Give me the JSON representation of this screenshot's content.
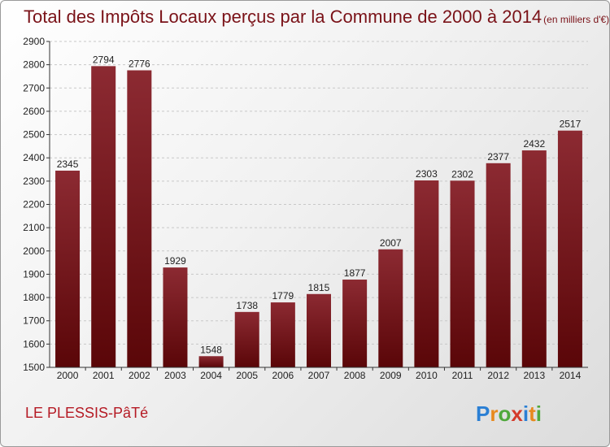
{
  "chart_data": {
    "type": "bar",
    "title": "Total des Impôts Locaux perçus par la Commune de 2000 à 2014",
    "unit": "(en milliers d'€)",
    "categories": [
      "2000",
      "2001",
      "2002",
      "2003",
      "2004",
      "2005",
      "2006",
      "2007",
      "2008",
      "2009",
      "2010",
      "2011",
      "2012",
      "2013",
      "2014"
    ],
    "values": [
      2345,
      2794,
      2776,
      1929,
      1548,
      1738,
      1779,
      1815,
      1877,
      2007,
      2303,
      2302,
      2377,
      2432,
      2517
    ],
    "ylim": [
      1500,
      2900
    ],
    "yticks": [
      1500,
      1600,
      1700,
      1800,
      1900,
      2000,
      2100,
      2200,
      2300,
      2400,
      2500,
      2600,
      2700,
      2800,
      2900
    ],
    "grid": true,
    "bar_color": "#7a1a22"
  },
  "commune": "LE PLESSIS-PâTé",
  "logo": {
    "letters": [
      "P",
      "r",
      "o",
      "x",
      "i",
      "t",
      "i"
    ],
    "colors": [
      "#2a7fd4",
      "#e8891d",
      "#4fa83c",
      "#d43a2a",
      "#2a7fd4",
      "#e8891d",
      "#4fa83c"
    ]
  }
}
